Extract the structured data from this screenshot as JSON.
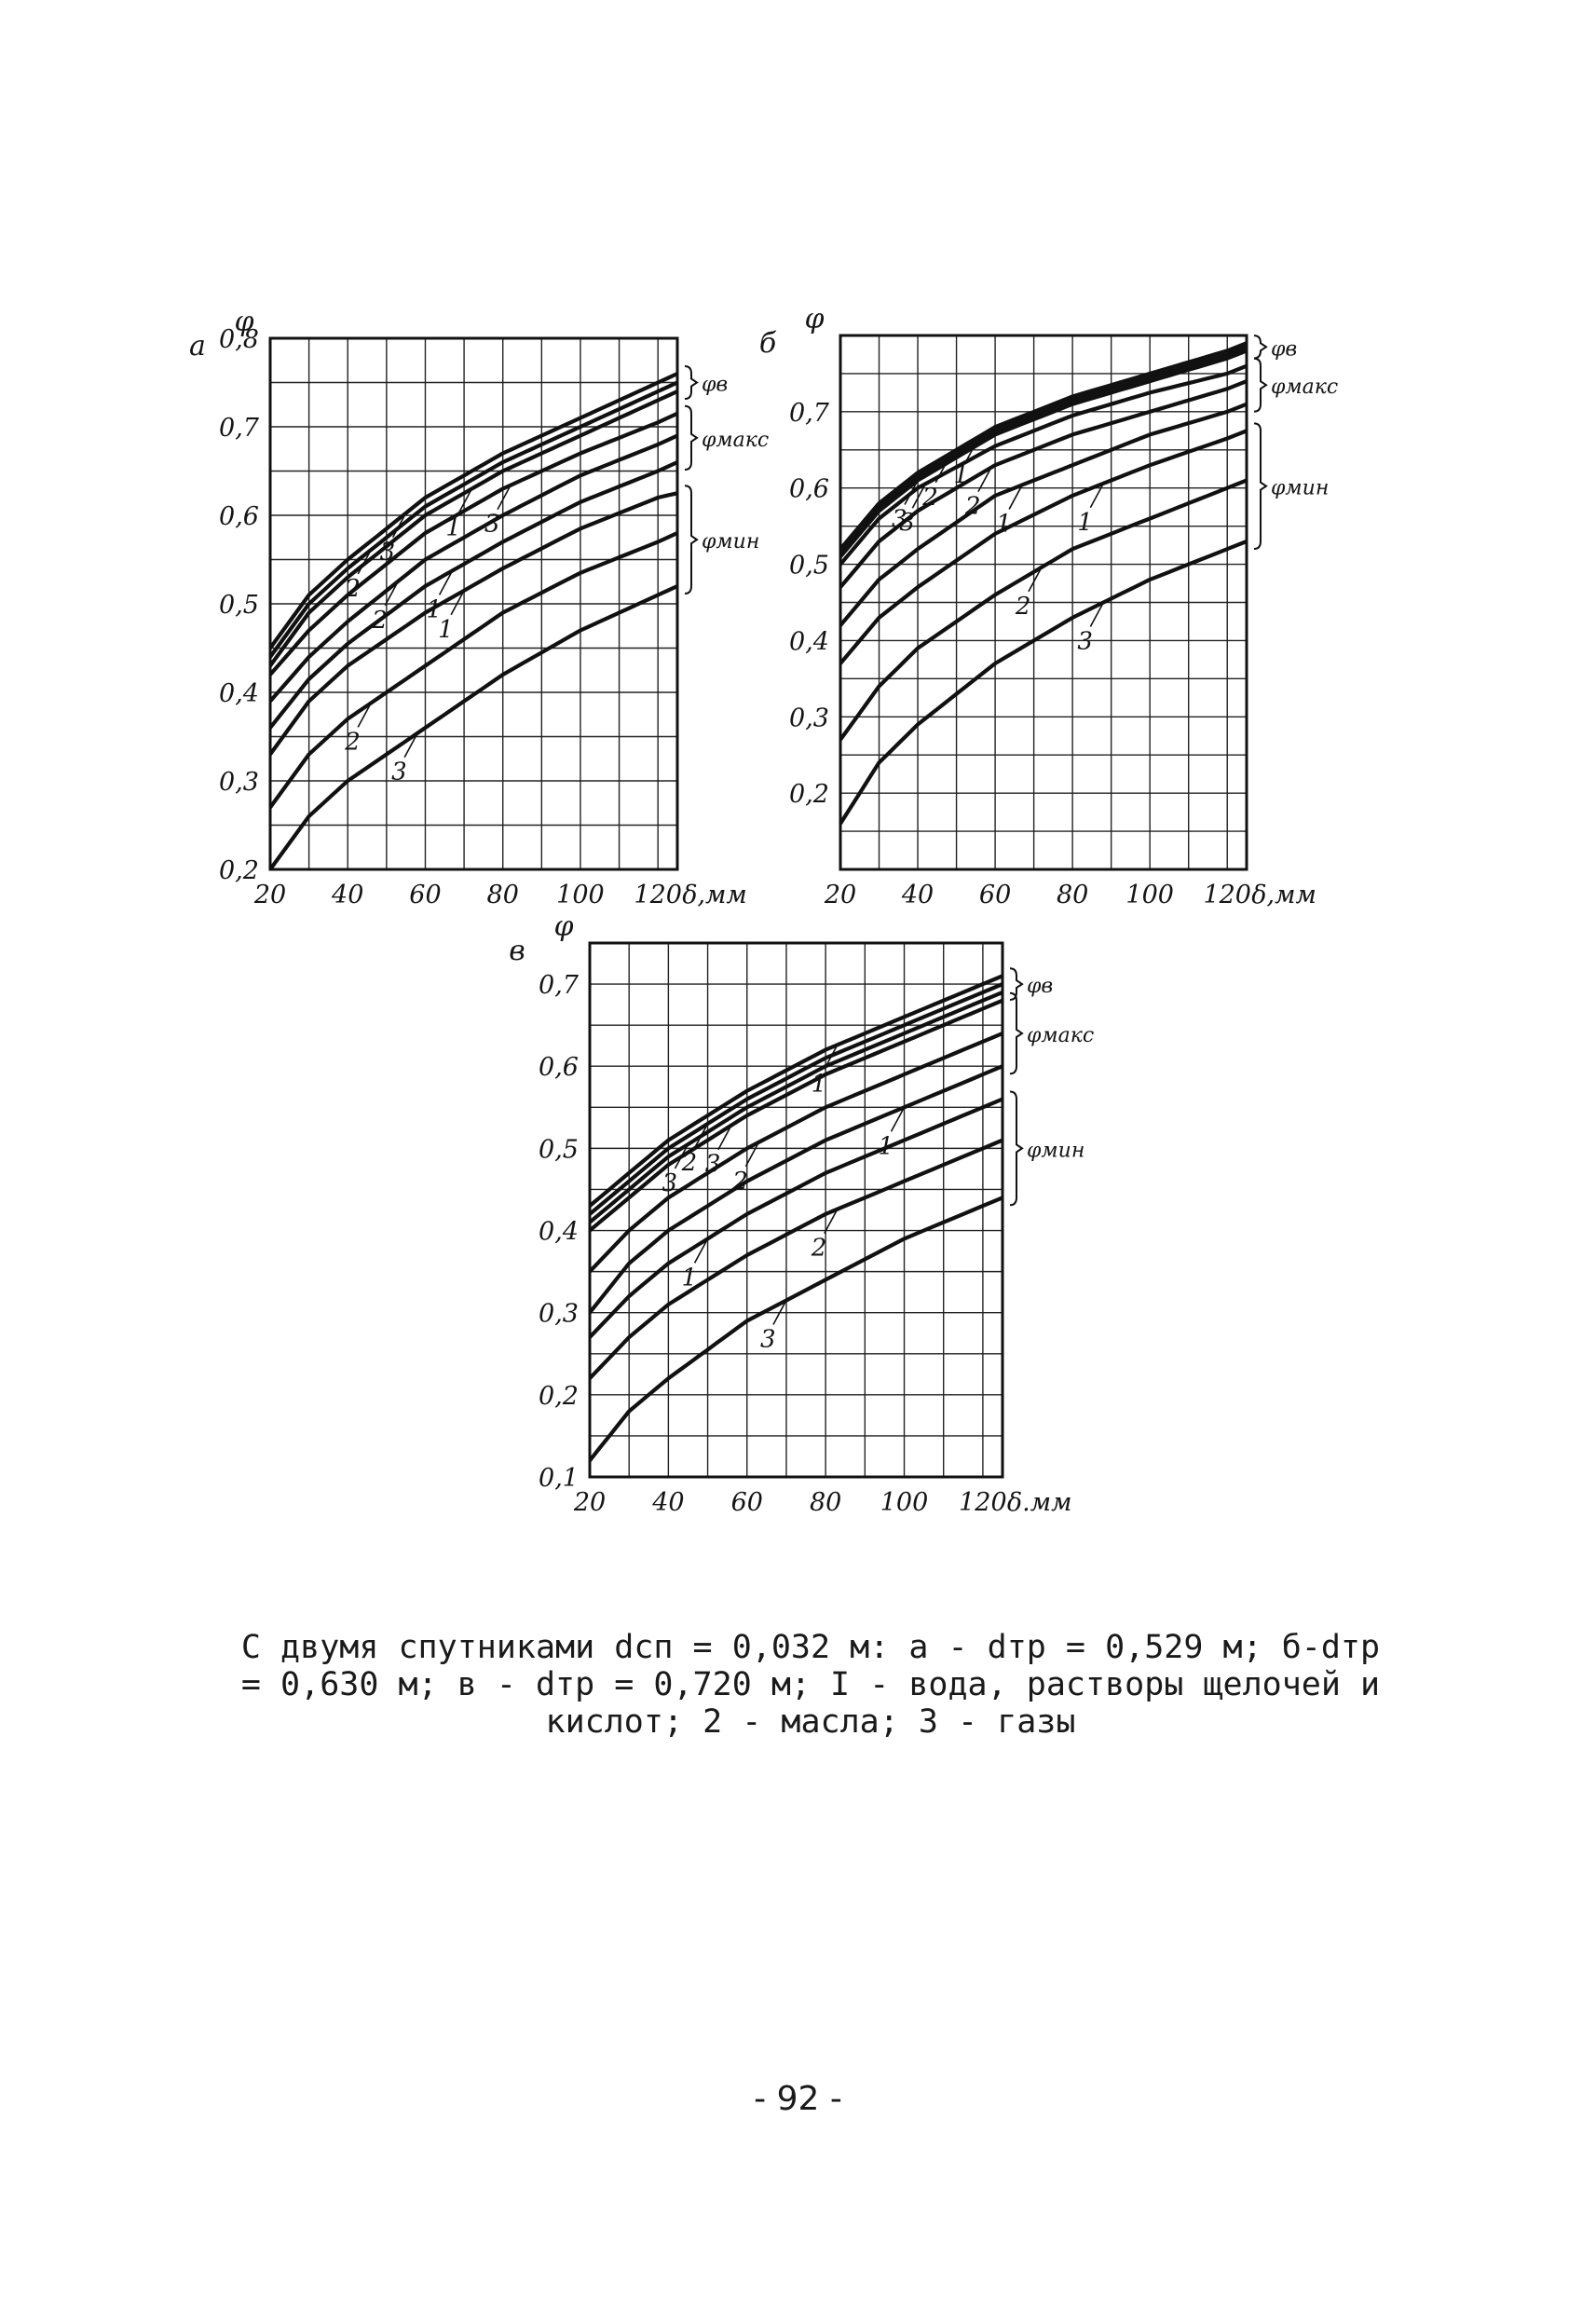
{
  "chart_data": [
    {
      "type": "line",
      "panel_letter": "а",
      "ylabel": "φ",
      "xlabel": "δ,мм",
      "xlim": [
        20,
        125
      ],
      "ylim": [
        0.2,
        0.8
      ],
      "x_ticks": [
        20,
        40,
        60,
        80,
        100,
        120
      ],
      "y_ticks": [
        0.2,
        0.3,
        0.4,
        0.5,
        0.6,
        0.7,
        0.8
      ],
      "x_tick_labels": [
        "20",
        "40",
        "60",
        "80",
        "100",
        "120"
      ],
      "y_tick_labels": [
        "0,2",
        "0,3",
        "0,4",
        "0,5",
        "0,6",
        "0,7",
        "0,8"
      ],
      "grid": true,
      "group_labels": [
        "φв",
        "φмакс",
        "φмин"
      ],
      "series": [
        {
          "name": "3",
          "group": "φв",
          "x": [
            20,
            30,
            40,
            60,
            80,
            100,
            120,
            125
          ],
          "y": [
            0.45,
            0.51,
            0.55,
            0.62,
            0.67,
            0.71,
            0.75,
            0.76
          ]
        },
        {
          "name": "2",
          "group": "φв",
          "x": [
            20,
            30,
            40,
            60,
            80,
            100,
            120,
            125
          ],
          "y": [
            0.44,
            0.5,
            0.54,
            0.61,
            0.66,
            0.7,
            0.74,
            0.75
          ]
        },
        {
          "name": "1",
          "group": "φв",
          "x": [
            20,
            30,
            40,
            60,
            80,
            100,
            120,
            125
          ],
          "y": [
            0.43,
            0.49,
            0.53,
            0.6,
            0.65,
            0.69,
            0.73,
            0.74
          ]
        },
        {
          "name": "3",
          "group": "φмакс",
          "x": [
            20,
            30,
            40,
            60,
            80,
            100,
            120,
            125
          ],
          "y": [
            0.42,
            0.47,
            0.51,
            0.58,
            0.63,
            0.67,
            0.705,
            0.715
          ]
        },
        {
          "name": "2",
          "group": "φмакс",
          "x": [
            20,
            30,
            40,
            60,
            80,
            100,
            120,
            125
          ],
          "y": [
            0.39,
            0.44,
            0.48,
            0.55,
            0.6,
            0.645,
            0.68,
            0.69
          ]
        },
        {
          "name": "1",
          "group": "φмакс",
          "x": [
            20,
            30,
            40,
            60,
            80,
            100,
            120,
            125
          ],
          "y": [
            0.36,
            0.415,
            0.455,
            0.52,
            0.57,
            0.615,
            0.65,
            0.66
          ]
        },
        {
          "name": "1",
          "group": "φмин",
          "x": [
            20,
            30,
            40,
            60,
            80,
            100,
            120,
            125
          ],
          "y": [
            0.33,
            0.39,
            0.43,
            0.49,
            0.54,
            0.585,
            0.62,
            0.625
          ]
        },
        {
          "name": "2",
          "group": "φмин",
          "x": [
            20,
            30,
            40,
            60,
            80,
            100,
            120,
            125
          ],
          "y": [
            0.27,
            0.33,
            0.37,
            0.43,
            0.49,
            0.535,
            0.57,
            0.58
          ]
        },
        {
          "name": "3",
          "group": "φмин",
          "x": [
            20,
            30,
            40,
            60,
            80,
            100,
            120,
            125
          ],
          "y": [
            0.2,
            0.26,
            0.3,
            0.36,
            0.42,
            0.47,
            0.51,
            0.52
          ]
        }
      ]
    },
    {
      "type": "line",
      "panel_letter": "б",
      "ylabel": "φ",
      "xlabel": "δ,мм",
      "xlim": [
        20,
        125
      ],
      "ylim": [
        0.1,
        0.8
      ],
      "x_ticks": [
        20,
        40,
        60,
        80,
        100,
        120
      ],
      "y_ticks": [
        0.2,
        0.3,
        0.4,
        0.5,
        0.6,
        0.7
      ],
      "x_tick_labels": [
        "20",
        "40",
        "60",
        "80",
        "100",
        "120"
      ],
      "y_tick_labels": [
        "0,2",
        "0,3",
        "0,4",
        "0,5",
        "0,6",
        "0,7"
      ],
      "grid": true,
      "group_labels": [
        "φв",
        "φмакс",
        "φмин"
      ],
      "series": [
        {
          "name": "1",
          "group": "φв",
          "x": [
            20,
            30,
            40,
            60,
            80,
            100,
            120,
            125
          ],
          "y": [
            0.52,
            0.58,
            0.62,
            0.68,
            0.72,
            0.75,
            0.78,
            0.79
          ]
        },
        {
          "name": "2",
          "group": "φв",
          "x": [
            20,
            30,
            40,
            60,
            80,
            100,
            120,
            125
          ],
          "y": [
            0.515,
            0.575,
            0.615,
            0.675,
            0.715,
            0.745,
            0.775,
            0.785
          ]
        },
        {
          "name": "3",
          "group": "φв",
          "x": [
            20,
            30,
            40,
            60,
            80,
            100,
            120,
            125
          ],
          "y": [
            0.51,
            0.57,
            0.61,
            0.67,
            0.71,
            0.74,
            0.77,
            0.78
          ]
        },
        {
          "name": "3",
          "group": "φмакс",
          "x": [
            20,
            30,
            40,
            60,
            80,
            100,
            120,
            125
          ],
          "y": [
            0.5,
            0.56,
            0.6,
            0.655,
            0.695,
            0.725,
            0.75,
            0.76
          ]
        },
        {
          "name": "2",
          "group": "φмакс",
          "x": [
            20,
            30,
            40,
            60,
            80,
            100,
            120,
            125
          ],
          "y": [
            0.47,
            0.53,
            0.57,
            0.63,
            0.67,
            0.7,
            0.73,
            0.74
          ]
        },
        {
          "name": "1",
          "group": "φмакс",
          "x": [
            20,
            30,
            40,
            60,
            80,
            100,
            120,
            125
          ],
          "y": [
            0.42,
            0.48,
            0.52,
            0.59,
            0.63,
            0.67,
            0.7,
            0.71
          ]
        },
        {
          "name": "1",
          "group": "φмин",
          "x": [
            20,
            30,
            40,
            60,
            80,
            100,
            120,
            125
          ],
          "y": [
            0.37,
            0.43,
            0.47,
            0.54,
            0.59,
            0.63,
            0.665,
            0.675
          ]
        },
        {
          "name": "2",
          "group": "φмин",
          "x": [
            20,
            30,
            40,
            60,
            80,
            100,
            120,
            125
          ],
          "y": [
            0.27,
            0.34,
            0.39,
            0.46,
            0.52,
            0.56,
            0.6,
            0.61
          ]
        },
        {
          "name": "3",
          "group": "φмин",
          "x": [
            20,
            30,
            40,
            60,
            80,
            100,
            120,
            125
          ],
          "y": [
            0.16,
            0.24,
            0.29,
            0.37,
            0.43,
            0.48,
            0.52,
            0.53
          ]
        }
      ]
    },
    {
      "type": "line",
      "panel_letter": "в",
      "ylabel": "φ",
      "xlabel": "δ.мм",
      "xlim": [
        20,
        125
      ],
      "ylim": [
        0.1,
        0.75
      ],
      "x_ticks": [
        20,
        40,
        60,
        80,
        100,
        120
      ],
      "y_ticks": [
        0.1,
        0.2,
        0.3,
        0.4,
        0.5,
        0.6,
        0.7
      ],
      "x_tick_labels": [
        "20",
        "40",
        "60",
        "80",
        "100",
        "120"
      ],
      "y_tick_labels": [
        "0,1",
        "0,2",
        "0,3",
        "0,4",
        "0,5",
        "0,6",
        "0,7"
      ],
      "grid": true,
      "group_labels": [
        "φв",
        "φмакс",
        "φмин"
      ],
      "series": [
        {
          "name": "1",
          "group": "φв",
          "x": [
            20,
            30,
            40,
            60,
            80,
            100,
            120,
            125
          ],
          "y": [
            0.43,
            0.47,
            0.51,
            0.57,
            0.62,
            0.66,
            0.7,
            0.71
          ]
        },
        {
          "name": "2",
          "group": "φв",
          "x": [
            20,
            30,
            40,
            60,
            80,
            100,
            120,
            125
          ],
          "y": [
            0.42,
            0.46,
            0.5,
            0.56,
            0.61,
            0.65,
            0.69,
            0.7
          ]
        },
        {
          "name": "3",
          "group": "φв",
          "x": [
            20,
            30,
            40,
            60,
            80,
            100,
            120,
            125
          ],
          "y": [
            0.41,
            0.45,
            0.49,
            0.55,
            0.6,
            0.64,
            0.68,
            0.69
          ]
        },
        {
          "name": "3",
          "group": "φмакс",
          "x": [
            20,
            30,
            40,
            60,
            80,
            100,
            120,
            125
          ],
          "y": [
            0.4,
            0.44,
            0.48,
            0.54,
            0.59,
            0.63,
            0.67,
            0.68
          ]
        },
        {
          "name": "2",
          "group": "φмакс",
          "x": [
            20,
            30,
            40,
            60,
            80,
            100,
            120,
            125
          ],
          "y": [
            0.35,
            0.4,
            0.44,
            0.5,
            0.55,
            0.59,
            0.63,
            0.64
          ]
        },
        {
          "name": "1",
          "group": "φмакс",
          "x": [
            20,
            30,
            40,
            60,
            80,
            100,
            120,
            125
          ],
          "y": [
            0.3,
            0.36,
            0.4,
            0.46,
            0.51,
            0.55,
            0.59,
            0.6
          ]
        },
        {
          "name": "1",
          "group": "φмин",
          "x": [
            20,
            30,
            40,
            60,
            80,
            100,
            120,
            125
          ],
          "y": [
            0.27,
            0.32,
            0.36,
            0.42,
            0.47,
            0.51,
            0.55,
            0.56
          ]
        },
        {
          "name": "2",
          "group": "φмин",
          "x": [
            20,
            30,
            40,
            60,
            80,
            100,
            120,
            125
          ],
          "y": [
            0.22,
            0.27,
            0.31,
            0.37,
            0.42,
            0.46,
            0.5,
            0.51
          ]
        },
        {
          "name": "3",
          "group": "φмин",
          "x": [
            20,
            30,
            40,
            60,
            80,
            100,
            120,
            125
          ],
          "y": [
            0.12,
            0.18,
            0.22,
            0.29,
            0.34,
            0.39,
            0.43,
            0.44
          ]
        }
      ]
    }
  ],
  "caption": {
    "line1": "С двумя спутниками dсп = 0,032 м: а - dтр = 0,529 м; б-dтр",
    "line2": "= 0,630 м; в - dтр = 0,720 м; I - вода, растворы щелочей и",
    "line3": "кислот; 2 - масла; 3 - газы"
  },
  "page_number": "- 92 -",
  "colors": {
    "ink": "#151515",
    "paper": "#ffffff"
  }
}
